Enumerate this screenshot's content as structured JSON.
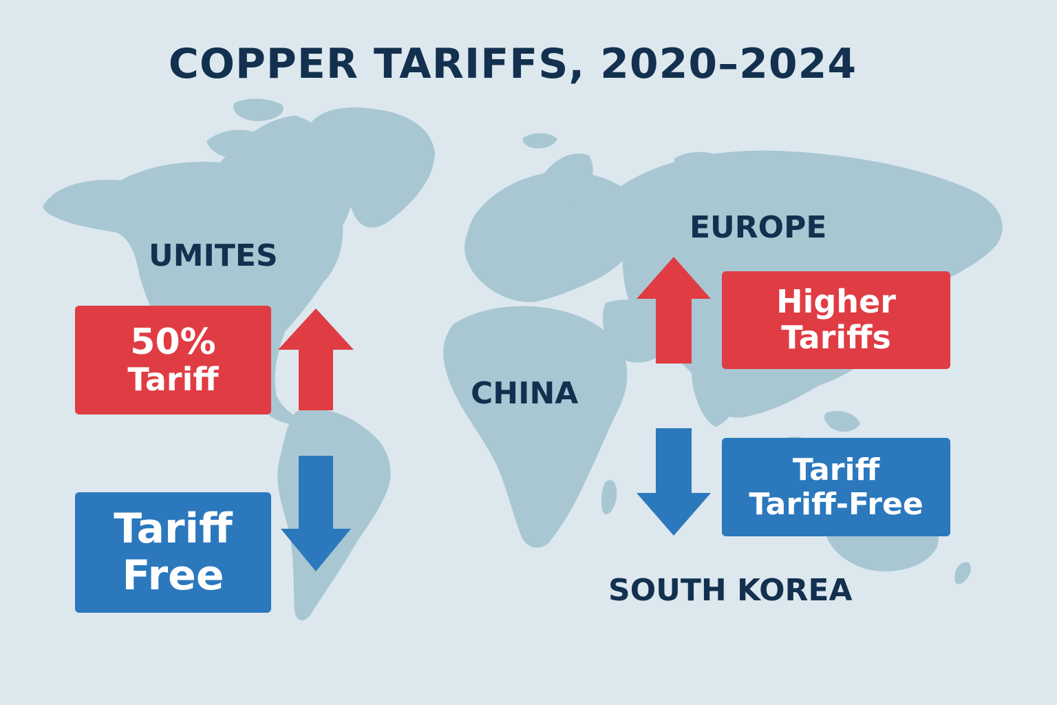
{
  "title": "COPPER TARIFFS, 2020–2024",
  "regions": {
    "us": "UMITES",
    "europe": "EUROPE",
    "china": "CHINA",
    "south_korea": "SOUTH KOREA"
  },
  "boxes": {
    "us_tariff": {
      "line1": "50%",
      "line2": "Tariff"
    },
    "us_free": {
      "line1": "Tariff",
      "line2": "Free"
    },
    "eu_higher": {
      "line1": "Higher",
      "line2": "Tariffs"
    },
    "kr_free": {
      "line1": "Tariff",
      "line2": "Tariff-Free"
    }
  },
  "colors": {
    "background": "#dce8ee",
    "land": "#a9c7d3",
    "text": "#13304f",
    "increase": "#e03c44",
    "decrease": "#2b78bd"
  }
}
